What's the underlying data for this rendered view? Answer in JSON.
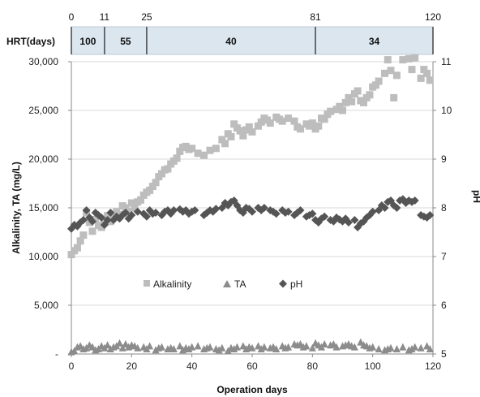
{
  "chart_data": {
    "type": "scatter",
    "xlabel": "Operation days",
    "ylabel_left": "Alkalinity, TA (mg/L)",
    "ylabel_right": "pH",
    "xlim": [
      0,
      120
    ],
    "ylim_left": [
      0,
      30000
    ],
    "ylim_right": [
      5,
      11
    ],
    "x_ticks": [
      "0",
      "20",
      "40",
      "60",
      "80",
      "100",
      "120"
    ],
    "y_left_ticks": [
      "-",
      "5,000",
      "10,000",
      "15,000",
      "20,000",
      "25,000",
      "30,000"
    ],
    "y_right_ticks": [
      "5",
      "6",
      "7",
      "8",
      "9",
      "10",
      "11"
    ],
    "grid": "horizontal",
    "legend_position": "bottom-left",
    "hrt": {
      "label": "HRT(days)",
      "boundaries": [
        0,
        11,
        25,
        81,
        120
      ],
      "boundary_labels": [
        "0",
        "11",
        "25",
        "81",
        "120"
      ],
      "values": [
        "100",
        "55",
        "40",
        "34"
      ]
    },
    "series": [
      {
        "name": "Alkalinity",
        "axis": "left",
        "marker": "square",
        "color": "#bdbdbd",
        "points": [
          [
            0,
            10200
          ],
          [
            1,
            10600
          ],
          [
            2,
            10900
          ],
          [
            3,
            11600
          ],
          [
            4,
            12200
          ],
          [
            5,
            14500
          ],
          [
            6,
            13500
          ],
          [
            7,
            12600
          ],
          [
            8,
            13800
          ],
          [
            9,
            13200
          ],
          [
            10,
            13000
          ],
          [
            11,
            13500
          ],
          [
            12,
            14200
          ],
          [
            13,
            13600
          ],
          [
            14,
            14100
          ],
          [
            15,
            14600
          ],
          [
            16,
            14300
          ],
          [
            17,
            15200
          ],
          [
            18,
            15000
          ],
          [
            19,
            14600
          ],
          [
            20,
            15500
          ],
          [
            21,
            15000
          ],
          [
            22,
            15600
          ],
          [
            23,
            15800
          ],
          [
            24,
            16300
          ],
          [
            25,
            16600
          ],
          [
            26,
            16800
          ],
          [
            27,
            17200
          ],
          [
            28,
            17600
          ],
          [
            29,
            18200
          ],
          [
            30,
            18500
          ],
          [
            31,
            18900
          ],
          [
            32,
            19000
          ],
          [
            33,
            19500
          ],
          [
            34,
            19800
          ],
          [
            35,
            20100
          ],
          [
            36,
            20800
          ],
          [
            37,
            21200
          ],
          [
            38,
            21300
          ],
          [
            39,
            21000
          ],
          [
            40,
            21100
          ],
          [
            42,
            20600
          ],
          [
            44,
            20400
          ],
          [
            46,
            20900
          ],
          [
            48,
            21100
          ],
          [
            50,
            22000
          ],
          [
            51,
            21600
          ],
          [
            52,
            22600
          ],
          [
            53,
            22300
          ],
          [
            54,
            23600
          ],
          [
            55,
            23200
          ],
          [
            56,
            22900
          ],
          [
            57,
            22400
          ],
          [
            58,
            23000
          ],
          [
            59,
            23300
          ],
          [
            60,
            22800
          ],
          [
            62,
            23400
          ],
          [
            63,
            23800
          ],
          [
            64,
            24200
          ],
          [
            65,
            24000
          ],
          [
            66,
            23700
          ],
          [
            68,
            24300
          ],
          [
            69,
            24100
          ],
          [
            70,
            23900
          ],
          [
            72,
            24200
          ],
          [
            74,
            23900
          ],
          [
            75,
            23300
          ],
          [
            76,
            23100
          ],
          [
            78,
            23600
          ],
          [
            79,
            23400
          ],
          [
            80,
            23700
          ],
          [
            81,
            23100
          ],
          [
            82,
            23400
          ],
          [
            83,
            24200
          ],
          [
            84,
            24100
          ],
          [
            85,
            24600
          ],
          [
            86,
            24900
          ],
          [
            88,
            25100
          ],
          [
            89,
            25400
          ],
          [
            90,
            25000
          ],
          [
            91,
            25800
          ],
          [
            92,
            26300
          ],
          [
            93,
            25900
          ],
          [
            94,
            26700
          ],
          [
            95,
            27000
          ],
          [
            96,
            26000
          ],
          [
            97,
            25800
          ],
          [
            98,
            26300
          ],
          [
            99,
            26600
          ],
          [
            100,
            27400
          ],
          [
            101,
            27600
          ],
          [
            102,
            28000
          ],
          [
            104,
            28800
          ],
          [
            105,
            30200
          ],
          [
            106,
            29100
          ],
          [
            107,
            26300
          ],
          [
            108,
            28600
          ],
          [
            110,
            30200
          ],
          [
            112,
            30300
          ],
          [
            113,
            29200
          ],
          [
            114,
            30400
          ],
          [
            116,
            28300
          ],
          [
            117,
            29200
          ],
          [
            118,
            28800
          ],
          [
            119,
            28100
          ]
        ]
      },
      {
        "name": "TA",
        "axis": "left",
        "marker": "triangle",
        "color": "#8c8c8c",
        "points": [
          [
            0,
            200
          ],
          [
            1,
            300
          ],
          [
            2,
            700
          ],
          [
            3,
            800
          ],
          [
            4,
            500
          ],
          [
            5,
            600
          ],
          [
            6,
            900
          ],
          [
            7,
            700
          ],
          [
            8,
            400
          ],
          [
            9,
            500
          ],
          [
            10,
            800
          ],
          [
            11,
            600
          ],
          [
            12,
            900
          ],
          [
            13,
            500
          ],
          [
            14,
            700
          ],
          [
            15,
            800
          ],
          [
            16,
            1100
          ],
          [
            17,
            600
          ],
          [
            18,
            1000
          ],
          [
            19,
            700
          ],
          [
            20,
            900
          ],
          [
            21,
            800
          ],
          [
            22,
            600
          ],
          [
            24,
            700
          ],
          [
            25,
            500
          ],
          [
            26,
            800
          ],
          [
            28,
            400
          ],
          [
            29,
            600
          ],
          [
            30,
            700
          ],
          [
            32,
            500
          ],
          [
            33,
            600
          ],
          [
            34,
            500
          ],
          [
            36,
            800
          ],
          [
            37,
            400
          ],
          [
            38,
            600
          ],
          [
            39,
            500
          ],
          [
            40,
            700
          ],
          [
            42,
            800
          ],
          [
            44,
            500
          ],
          [
            45,
            600
          ],
          [
            46,
            700
          ],
          [
            48,
            500
          ],
          [
            49,
            400
          ],
          [
            50,
            600
          ],
          [
            52,
            300
          ],
          [
            53,
            600
          ],
          [
            54,
            500
          ],
          [
            55,
            700
          ],
          [
            57,
            800
          ],
          [
            58,
            500
          ],
          [
            59,
            700
          ],
          [
            60,
            600
          ],
          [
            62,
            800
          ],
          [
            63,
            500
          ],
          [
            64,
            700
          ],
          [
            66,
            600
          ],
          [
            67,
            700
          ],
          [
            68,
            500
          ],
          [
            70,
            800
          ],
          [
            71,
            600
          ],
          [
            72,
            700
          ],
          [
            74,
            1000
          ],
          [
            75,
            900
          ],
          [
            76,
            1000
          ],
          [
            77,
            700
          ],
          [
            78,
            800
          ],
          [
            80,
            600
          ],
          [
            81,
            1100
          ],
          [
            82,
            900
          ],
          [
            83,
            700
          ],
          [
            84,
            1000
          ],
          [
            86,
            900
          ],
          [
            87,
            1000
          ],
          [
            88,
            700
          ],
          [
            90,
            800
          ],
          [
            91,
            900
          ],
          [
            92,
            1000
          ],
          [
            93,
            800
          ],
          [
            94,
            700
          ],
          [
            96,
            1200
          ],
          [
            97,
            900
          ],
          [
            98,
            800
          ],
          [
            99,
            600
          ],
          [
            100,
            700
          ],
          [
            102,
            500
          ],
          [
            104,
            400
          ],
          [
            105,
            500
          ],
          [
            106,
            600
          ],
          [
            108,
            500
          ],
          [
            110,
            700
          ],
          [
            112,
            400
          ],
          [
            113,
            500
          ],
          [
            114,
            700
          ],
          [
            116,
            600
          ],
          [
            118,
            800
          ],
          [
            119,
            500
          ]
        ]
      },
      {
        "name": "pH",
        "axis": "right",
        "marker": "diamond",
        "color": "#555555",
        "points": [
          [
            0,
            7.57
          ],
          [
            1,
            7.65
          ],
          [
            2,
            7.62
          ],
          [
            3,
            7.7
          ],
          [
            4,
            7.75
          ],
          [
            5,
            7.95
          ],
          [
            6,
            7.8
          ],
          [
            7,
            7.72
          ],
          [
            8,
            7.9
          ],
          [
            9,
            7.85
          ],
          [
            10,
            7.8
          ],
          [
            11,
            7.65
          ],
          [
            12,
            7.75
          ],
          [
            13,
            7.9
          ],
          [
            14,
            7.75
          ],
          [
            15,
            7.82
          ],
          [
            16,
            7.78
          ],
          [
            17,
            7.85
          ],
          [
            18,
            7.9
          ],
          [
            19,
            7.78
          ],
          [
            20,
            7.85
          ],
          [
            22,
            7.92
          ],
          [
            24,
            7.88
          ],
          [
            25,
            7.82
          ],
          [
            26,
            7.95
          ],
          [
            27,
            7.88
          ],
          [
            28,
            7.9
          ],
          [
            30,
            7.85
          ],
          [
            31,
            7.92
          ],
          [
            32,
            7.95
          ],
          [
            33,
            7.88
          ],
          [
            34,
            7.95
          ],
          [
            36,
            7.97
          ],
          [
            37,
            7.92
          ],
          [
            38,
            7.95
          ],
          [
            39,
            7.88
          ],
          [
            40,
            7.92
          ],
          [
            41,
            7.95
          ],
          [
            44,
            7.85
          ],
          [
            45,
            7.9
          ],
          [
            46,
            7.95
          ],
          [
            47,
            7.92
          ],
          [
            48,
            7.98
          ],
          [
            50,
            8.0
          ],
          [
            51,
            8.1
          ],
          [
            52,
            8.05
          ],
          [
            53,
            8.12
          ],
          [
            54,
            8.15
          ],
          [
            55,
            8.05
          ],
          [
            56,
            7.95
          ],
          [
            57,
            7.9
          ],
          [
            58,
            8.0
          ],
          [
            59,
            7.98
          ],
          [
            60,
            7.92
          ],
          [
            62,
            8.0
          ],
          [
            63,
            7.95
          ],
          [
            64,
            8.0
          ],
          [
            66,
            7.95
          ],
          [
            67,
            7.92
          ],
          [
            68,
            7.88
          ],
          [
            70,
            7.95
          ],
          [
            71,
            7.9
          ],
          [
            72,
            7.92
          ],
          [
            74,
            7.85
          ],
          [
            75,
            7.9
          ],
          [
            76,
            7.95
          ],
          [
            78,
            7.82
          ],
          [
            79,
            7.85
          ],
          [
            80,
            7.88
          ],
          [
            81,
            7.75
          ],
          [
            82,
            7.7
          ],
          [
            83,
            7.78
          ],
          [
            84,
            7.82
          ],
          [
            86,
            7.75
          ],
          [
            87,
            7.72
          ],
          [
            88,
            7.8
          ],
          [
            89,
            7.76
          ],
          [
            90,
            7.72
          ],
          [
            91,
            7.78
          ],
          [
            92,
            7.7
          ],
          [
            94,
            7.75
          ],
          [
            95,
            7.6
          ],
          [
            96,
            7.68
          ],
          [
            97,
            7.72
          ],
          [
            98,
            7.8
          ],
          [
            99,
            7.85
          ],
          [
            100,
            7.92
          ],
          [
            102,
            7.95
          ],
          [
            103,
            8.05
          ],
          [
            104,
            8.0
          ],
          [
            105,
            8.12
          ],
          [
            106,
            8.15
          ],
          [
            107,
            8.05
          ],
          [
            108,
            8.0
          ],
          [
            109,
            8.15
          ],
          [
            110,
            8.18
          ],
          [
            111,
            8.1
          ],
          [
            112,
            8.15
          ],
          [
            113,
            8.12
          ],
          [
            114,
            8.15
          ],
          [
            116,
            7.85
          ],
          [
            117,
            7.82
          ],
          [
            118,
            7.8
          ],
          [
            119,
            7.85
          ]
        ]
      }
    ]
  }
}
